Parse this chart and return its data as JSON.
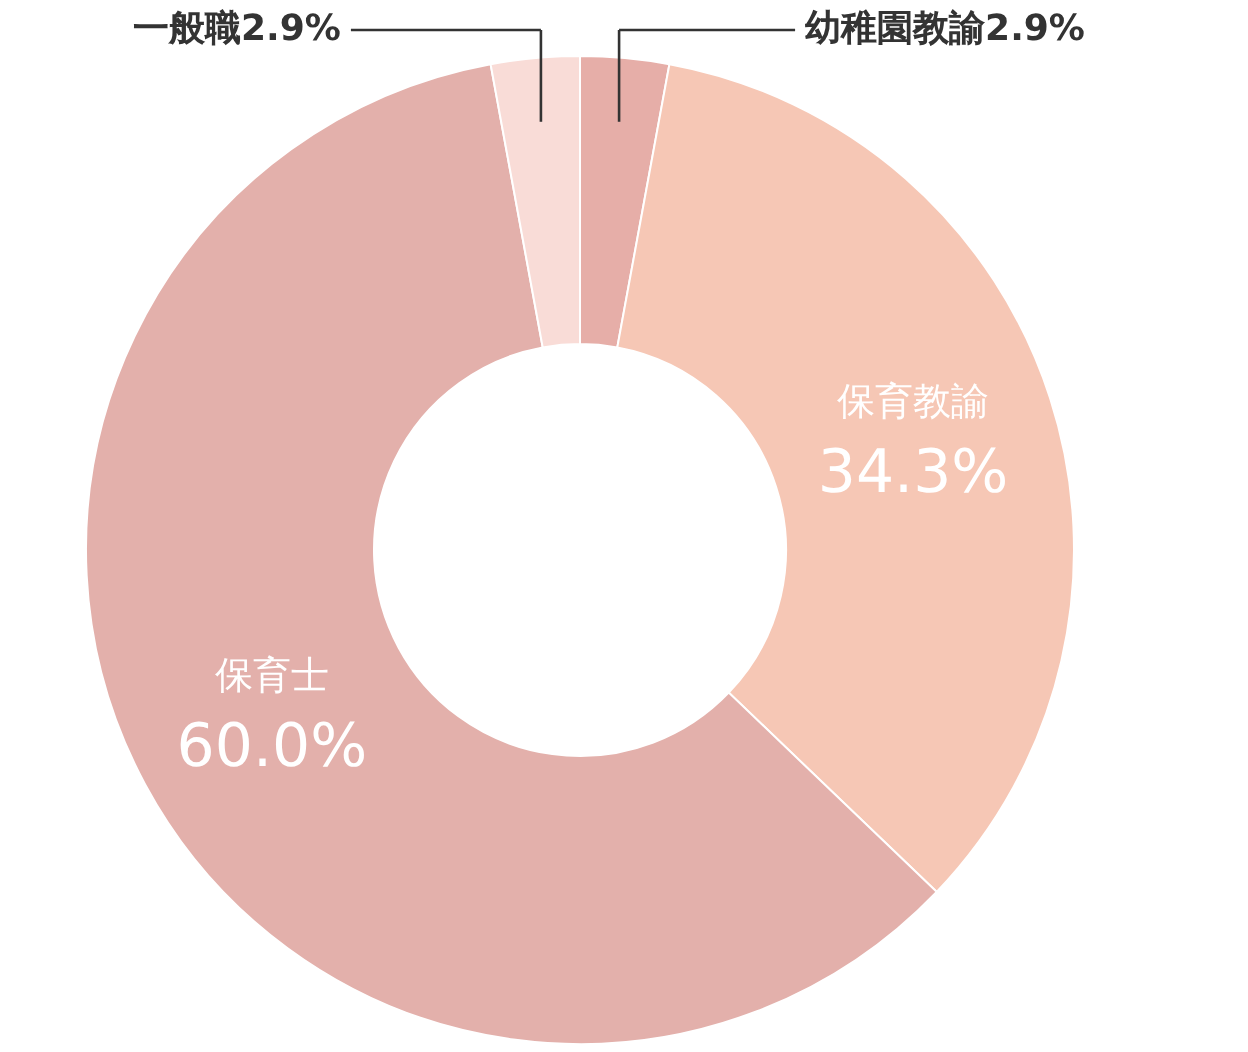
{
  "chart_data": {
    "type": "donut",
    "categories": [
      "幼稚園教諭",
      "保育教諭",
      "保育士",
      "一般職"
    ],
    "values": [
      2.9,
      34.3,
      60.0,
      2.9
    ],
    "value_labels": [
      "2.9%",
      "34.3%",
      "60.0%",
      "2.9%"
    ],
    "colors": [
      "#e6aea8",
      "#f6c7b5",
      "#e3b0ab",
      "#f9dcd7"
    ]
  }
}
